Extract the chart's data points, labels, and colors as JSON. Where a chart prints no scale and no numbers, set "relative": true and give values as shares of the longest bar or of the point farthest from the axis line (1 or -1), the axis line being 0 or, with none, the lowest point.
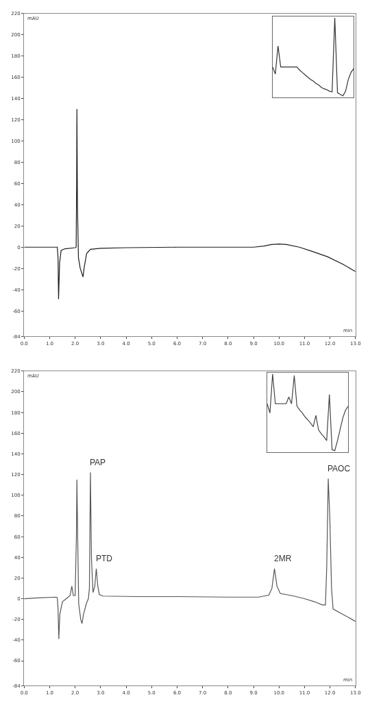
{
  "chart_data": [
    {
      "type": "line",
      "xlabel": "min",
      "ylabel": "mAU",
      "x": [
        0,
        1.3,
        1.33,
        1.35,
        1.39,
        1.45,
        1.6,
        2.0,
        2.04,
        2.06,
        2.07,
        2.09,
        2.13,
        2.2,
        2.31,
        2.35,
        2.45,
        2.6,
        3.0,
        4.0,
        6.0,
        8.0,
        9.0,
        9.4,
        9.7,
        10.0,
        10.3,
        10.8,
        11.3,
        11.9,
        12.5,
        13.0
      ],
      "series": [
        {
          "color": "#1a1a1a",
          "values": [
            0,
            0,
            -10,
            -49,
            -15,
            -3,
            -1.5,
            -0.5,
            0,
            60,
            130,
            40,
            -10,
            -20,
            -28,
            -20,
            -6,
            -2,
            -1,
            -0.5,
            0,
            0,
            0,
            1,
            2.5,
            3,
            2.5,
            0,
            -4,
            -9,
            -16,
            -23
          ]
        }
      ],
      "xlim": [
        0,
        13
      ],
      "ylim": [
        -84,
        220
      ],
      "xticks": [
        {
          "value": 0,
          "label": "0.0"
        },
        {
          "value": 1,
          "label": "1.0"
        },
        {
          "value": 2,
          "label": "2.0"
        },
        {
          "value": 3,
          "label": "3.0"
        },
        {
          "value": 4,
          "label": "4.0"
        },
        {
          "value": 5,
          "label": "5.0"
        },
        {
          "value": 6,
          "label": "6.0"
        },
        {
          "value": 7,
          "label": "7.0"
        },
        {
          "value": 8,
          "label": "8.0"
        },
        {
          "value": 9,
          "label": "9.0"
        },
        {
          "value": 10,
          "label": "10.0"
        },
        {
          "value": 11,
          "label": "11.0"
        },
        {
          "value": 12,
          "label": "12.0"
        },
        {
          "value": 13,
          "label": "13.0"
        }
      ],
      "yticks": [
        -84,
        -60,
        -40,
        -20,
        0,
        20,
        40,
        60,
        80,
        100,
        120,
        140,
        160,
        180,
        200,
        220
      ]
    },
    {
      "type": "line",
      "relative": true,
      "tick_labels": false,
      "categories": [
        null,
        null,
        null,
        null,
        null,
        null,
        null,
        null,
        null,
        null,
        null,
        null,
        null,
        null,
        null,
        null,
        null,
        null,
        null,
        null,
        null,
        null,
        null,
        null,
        null,
        null,
        null,
        null,
        null,
        null,
        null
      ],
      "series": [
        {
          "color": "#333333",
          "values": [
            0.37,
            0.28,
            0.64,
            0.37,
            0.37,
            0.37,
            0.37,
            0.37,
            0.37,
            0.37,
            0.33,
            0.3,
            0.27,
            0.24,
            0.21,
            0.19,
            0.16,
            0.14,
            0.11,
            0.09,
            0.08,
            0.06,
            0.05,
            1,
            0.04,
            0.02,
            0,
            0.06,
            0.21,
            0.3,
            0.35
          ]
        }
      ]
    },
    {
      "type": "line",
      "xlabel": "min",
      "ylabel": "mAU",
      "x": [
        0,
        0.5,
        1.25,
        1.3,
        1.33,
        1.36,
        1.4,
        1.5,
        1.7,
        1.8,
        1.87,
        1.93,
        2.0,
        2.05,
        2.07,
        2.1,
        2.14,
        2.22,
        2.27,
        2.33,
        2.45,
        2.52,
        2.56,
        2.6,
        2.64,
        2.7,
        2.77,
        2.83,
        2.89,
        2.95,
        3.1,
        4.5,
        6,
        8,
        9.2,
        9.6,
        9.72,
        9.82,
        9.92,
        10.05,
        10.5,
        11.0,
        11.4,
        11.7,
        11.82,
        11.87,
        11.93,
        11.99,
        12.06,
        12.12,
        12.5,
        13.0
      ],
      "series": [
        {
          "color": "#555555",
          "values": [
            0,
            0.8,
            1.5,
            1,
            -10,
            -39,
            -15,
            -3,
            1,
            3,
            12,
            3,
            3,
            60,
            115,
            60,
            -5,
            -20,
            -24,
            -15,
            -4,
            0,
            10,
            122,
            40,
            6,
            12,
            29,
            12,
            4,
            2.5,
            2,
            2,
            1.5,
            1.5,
            3.5,
            10,
            29,
            12,
            5,
            3,
            0,
            -3,
            -6,
            -6,
            30,
            116,
            80,
            10,
            -10,
            -15,
            -22
          ]
        }
      ],
      "annotations": [
        {
          "text": "PAP",
          "x": 2.6,
          "y": 122
        },
        {
          "text": "PTD",
          "x": 2.83,
          "y": 29
        },
        {
          "text": "2MR",
          "x": 9.82,
          "y": 29
        },
        {
          "text": "PAOC",
          "x": 11.93,
          "y": 116
        }
      ],
      "xlim": [
        0,
        13
      ],
      "ylim": [
        -84,
        220
      ],
      "xticks": [
        {
          "value": 0,
          "label": "0.0"
        },
        {
          "value": 1,
          "label": "1.0"
        },
        {
          "value": 2,
          "label": "2.0"
        },
        {
          "value": 3,
          "label": "3.0"
        },
        {
          "value": 4,
          "label": "4.0"
        },
        {
          "value": 5,
          "label": "5.0"
        },
        {
          "value": 6,
          "label": "6.0"
        },
        {
          "value": 7,
          "label": "7.0"
        },
        {
          "value": 8,
          "label": "8.0"
        },
        {
          "value": 9,
          "label": "9.0"
        },
        {
          "value": 10,
          "label": "10.0"
        },
        {
          "value": 11,
          "label": "11.0"
        },
        {
          "value": 12,
          "label": "12.0"
        },
        {
          "value": 13,
          "label": "13.0"
        }
      ],
      "yticks": [
        -84,
        -60,
        -40,
        -20,
        0,
        20,
        40,
        60,
        80,
        100,
        120,
        140,
        160,
        180,
        200,
        220
      ]
    },
    {
      "type": "line",
      "relative": true,
      "tick_labels": false,
      "categories": [
        null,
        null,
        null,
        null,
        null,
        null,
        null,
        null,
        null,
        null,
        null,
        null,
        null,
        null,
        null,
        null,
        null,
        null,
        null,
        null,
        null,
        null,
        null,
        null,
        null,
        null,
        null,
        null,
        null,
        null,
        null
      ],
      "series": [
        {
          "color": "#444444",
          "values": [
            0.61,
            0.49,
            1,
            0.61,
            0.61,
            0.61,
            0.61,
            0.61,
            0.7,
            0.61,
            0.98,
            0.58,
            0.53,
            0.49,
            0.44,
            0.4,
            0.36,
            0.31,
            0.46,
            0.27,
            0.22,
            0.18,
            0.13,
            0.73,
            0.01,
            0,
            0.13,
            0.28,
            0.43,
            0.53,
            0.58
          ]
        }
      ]
    }
  ]
}
